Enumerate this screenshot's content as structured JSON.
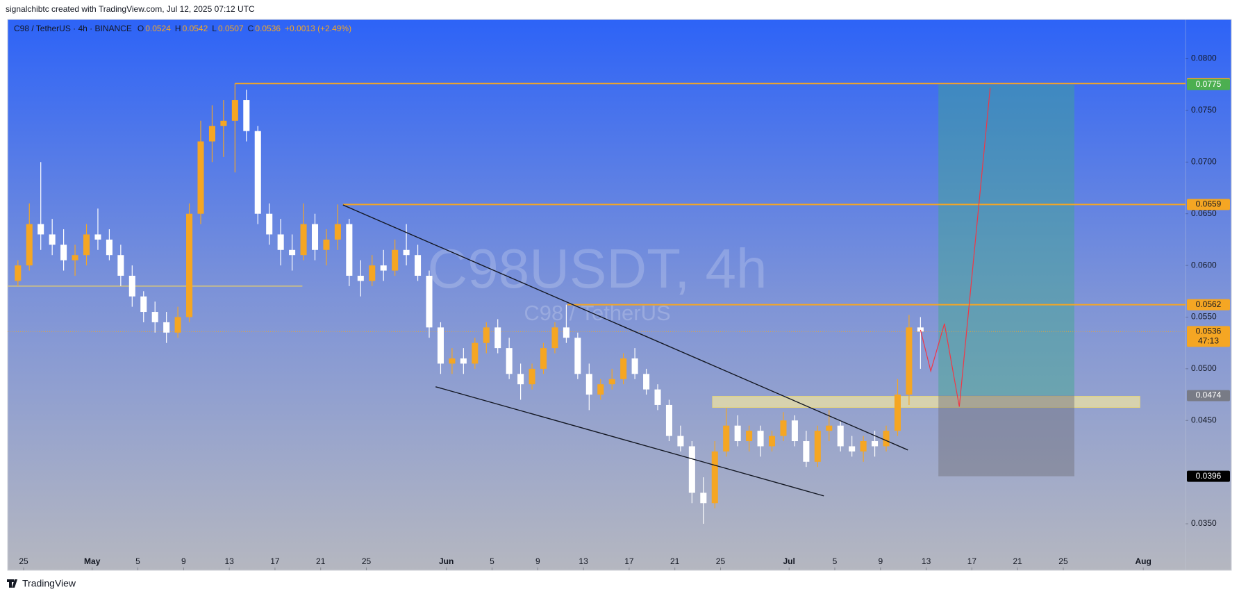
{
  "header": {
    "credit": "signalchibtc created with TradingView.com, Jul 12, 2025 07:12 UTC"
  },
  "footer": {
    "brand": "TradingView"
  },
  "chart_data": {
    "type": "candlestick",
    "legend": {
      "symbol": "C98 / TetherUS · 4h · BINANCE",
      "quotes": [
        {
          "key": "O",
          "value": 0.0524
        },
        {
          "key": "H",
          "value": 0.0542
        },
        {
          "key": "L",
          "value": 0.0507
        },
        {
          "key": "C",
          "value": 0.0536
        }
      ],
      "change": "+0.0013 (+2.49%)"
    },
    "watermark": {
      "title": "C98USDT, 4h",
      "subtitle": "C98 / TetherUS"
    },
    "x": [
      -1,
      0,
      1,
      2,
      3,
      4,
      5,
      6,
      7,
      8,
      9,
      10,
      11,
      12,
      13,
      14,
      15,
      16,
      17,
      18,
      19,
      20,
      21,
      22,
      23,
      24,
      25,
      26,
      27,
      28,
      29,
      30,
      31,
      32,
      33,
      34,
      35,
      36,
      37,
      38,
      39,
      40,
      41,
      42,
      43,
      44,
      45,
      46,
      47,
      48,
      49,
      50,
      51,
      52,
      53,
      54,
      55,
      56,
      57,
      58,
      59,
      60,
      61,
      62,
      63,
      64,
      65,
      66,
      67,
      68,
      69,
      70,
      71,
      72,
      73,
      74,
      75,
      76,
      77,
      78
    ],
    "open": [
      0.0585,
      0.06,
      0.064,
      0.063,
      0.062,
      0.0605,
      0.061,
      0.063,
      0.0625,
      0.061,
      0.059,
      0.057,
      0.0555,
      0.0545,
      0.0535,
      0.055,
      0.065,
      0.072,
      0.0735,
      0.074,
      0.076,
      0.073,
      0.065,
      0.063,
      0.0615,
      0.061,
      0.064,
      0.0615,
      0.0625,
      0.064,
      0.059,
      0.0585,
      0.06,
      0.0595,
      0.0615,
      0.061,
      0.059,
      0.054,
      0.0505,
      0.051,
      0.0505,
      0.0525,
      0.054,
      0.052,
      0.0495,
      0.0485,
      0.05,
      0.052,
      0.054,
      0.053,
      0.0495,
      0.0475,
      0.0485,
      0.049,
      0.051,
      0.0495,
      0.048,
      0.0465,
      0.0435,
      0.0425,
      0.038,
      0.037,
      0.042,
      0.0445,
      0.043,
      0.044,
      0.0425,
      0.0435,
      0.045,
      0.043,
      0.041,
      0.044,
      0.0445,
      0.0425,
      0.042,
      0.043,
      0.0425,
      0.044,
      0.0475,
      0.054
    ],
    "high": [
      0.0605,
      0.066,
      0.07,
      0.0645,
      0.0635,
      0.062,
      0.064,
      0.0655,
      0.0635,
      0.062,
      0.06,
      0.0575,
      0.0565,
      0.0555,
      0.056,
      0.066,
      0.074,
      0.0755,
      0.076,
      0.0776,
      0.077,
      0.0735,
      0.066,
      0.0645,
      0.063,
      0.066,
      0.065,
      0.0635,
      0.0659,
      0.0645,
      0.0605,
      0.061,
      0.0615,
      0.0625,
      0.064,
      0.062,
      0.0595,
      0.0545,
      0.052,
      0.052,
      0.053,
      0.0545,
      0.0548,
      0.053,
      0.0505,
      0.0505,
      0.0525,
      0.0545,
      0.0562,
      0.0535,
      0.0505,
      0.049,
      0.05,
      0.0515,
      0.052,
      0.05,
      0.0485,
      0.047,
      0.0445,
      0.043,
      0.0395,
      0.043,
      0.0462,
      0.0455,
      0.0445,
      0.0445,
      0.044,
      0.0458,
      0.0455,
      0.044,
      0.0445,
      0.046,
      0.045,
      0.0435,
      0.0435,
      0.044,
      0.0445,
      0.049,
      0.0552,
      0.055
    ],
    "low": [
      0.058,
      0.0595,
      0.0615,
      0.061,
      0.0595,
      0.059,
      0.06,
      0.0615,
      0.0605,
      0.058,
      0.056,
      0.0545,
      0.0535,
      0.0525,
      0.053,
      0.0545,
      0.064,
      0.07,
      0.0705,
      0.069,
      0.072,
      0.064,
      0.062,
      0.06,
      0.0595,
      0.0605,
      0.0605,
      0.06,
      0.0615,
      0.058,
      0.057,
      0.058,
      0.0585,
      0.059,
      0.06,
      0.0585,
      0.053,
      0.0495,
      0.0495,
      0.0495,
      0.05,
      0.0515,
      0.0515,
      0.049,
      0.047,
      0.048,
      0.0495,
      0.0515,
      0.0525,
      0.049,
      0.046,
      0.047,
      0.048,
      0.0485,
      0.049,
      0.0475,
      0.046,
      0.043,
      0.042,
      0.037,
      0.035,
      0.0365,
      0.0415,
      0.0425,
      0.042,
      0.0415,
      0.042,
      0.043,
      0.0425,
      0.0405,
      0.0405,
      0.043,
      0.042,
      0.0415,
      0.041,
      0.0415,
      0.042,
      0.0435,
      0.0465,
      0.05
    ],
    "close": [
      0.06,
      0.064,
      0.063,
      0.062,
      0.0605,
      0.061,
      0.063,
      0.0625,
      0.061,
      0.059,
      0.057,
      0.0555,
      0.0545,
      0.0535,
      0.055,
      0.065,
      0.072,
      0.0735,
      0.074,
      0.076,
      0.073,
      0.065,
      0.063,
      0.0615,
      0.061,
      0.064,
      0.0615,
      0.0625,
      0.064,
      0.059,
      0.0585,
      0.06,
      0.0595,
      0.0615,
      0.061,
      0.059,
      0.054,
      0.0505,
      0.051,
      0.0505,
      0.0525,
      0.054,
      0.052,
      0.0495,
      0.0485,
      0.05,
      0.052,
      0.054,
      0.053,
      0.0495,
      0.0475,
      0.0485,
      0.049,
      0.051,
      0.0495,
      0.048,
      0.0465,
      0.0435,
      0.0425,
      0.038,
      0.037,
      0.042,
      0.0445,
      0.043,
      0.044,
      0.0425,
      0.0435,
      0.045,
      0.043,
      0.041,
      0.044,
      0.0445,
      0.0425,
      0.042,
      0.043,
      0.0425,
      0.044,
      0.0475,
      0.054,
      0.0536
    ],
    "countdown": "47:13",
    "up_color": "#f5a623",
    "down_color": "#ffffff",
    "xlim": [
      -1.4,
      101.7
    ],
    "xticks": [
      {
        "value": 0,
        "label": "25"
      },
      {
        "value": 6,
        "label": "May"
      },
      {
        "value": 10,
        "label": "5"
      },
      {
        "value": 14,
        "label": "9"
      },
      {
        "value": 18,
        "label": "13"
      },
      {
        "value": 22,
        "label": "17"
      },
      {
        "value": 26,
        "label": "21"
      },
      {
        "value": 30,
        "label": "25"
      },
      {
        "value": 37,
        "label": "Jun"
      },
      {
        "value": 41,
        "label": "5"
      },
      {
        "value": 45,
        "label": "9"
      },
      {
        "value": 49,
        "label": "13"
      },
      {
        "value": 53,
        "label": "17"
      },
      {
        "value": 57,
        "label": "21"
      },
      {
        "value": 61,
        "label": "25"
      },
      {
        "value": 67,
        "label": "Jul"
      },
      {
        "value": 71,
        "label": "5"
      },
      {
        "value": 75,
        "label": "9"
      },
      {
        "value": 79,
        "label": "13"
      },
      {
        "value": 83,
        "label": "17"
      },
      {
        "value": 87,
        "label": "21"
      },
      {
        "value": 91,
        "label": "25"
      },
      {
        "value": 98,
        "label": "Aug"
      }
    ],
    "ylim": [
      0.0305,
      0.0838
    ],
    "yticks": [
      {
        "value": 0.035,
        "label": "0.0350"
      },
      {
        "value": 0.045,
        "label": "0.0450"
      },
      {
        "value": 0.05,
        "label": "0.0500"
      },
      {
        "value": 0.055,
        "label": "0.0550"
      },
      {
        "value": 0.06,
        "label": "0.0600"
      },
      {
        "value": 0.065,
        "label": "0.0650"
      },
      {
        "value": 0.07,
        "label": "0.0700"
      },
      {
        "value": 0.075,
        "label": "0.0750"
      },
      {
        "value": 0.08,
        "label": "0.0800"
      }
    ],
    "level_color": "#f5a623",
    "levels": [
      {
        "value": 0.0776,
        "from": 18.5
      },
      {
        "value": 0.0659,
        "from": 27.95
      },
      {
        "value": 0.0562,
        "from": 47.6
      }
    ],
    "guide": {
      "x": [
        -1.4,
        24.4
      ],
      "y": 0.058
    },
    "trendlines": [
      {
        "x": [
          27.95,
          77.4
        ],
        "y": [
          0.06585,
          0.04214
        ]
      },
      {
        "x": [
          36.06,
          70.04
        ],
        "y": [
          0.04826,
          0.0377
        ]
      }
    ],
    "zone": {
      "x": [
        60.3,
        97.7
      ],
      "y": [
        0.04626,
        0.04733
      ]
    },
    "position": {
      "x": [
        80.07,
        91.97
      ],
      "target": 0.0775,
      "entry": 0.0474,
      "stop": 0.0396
    },
    "projection": {
      "x": [
        78.5,
        79.4,
        80.6,
        81.9,
        84.6
      ],
      "y": [
        0.05376,
        0.04978,
        0.05437,
        0.04633,
        0.07717
      ]
    }
  }
}
